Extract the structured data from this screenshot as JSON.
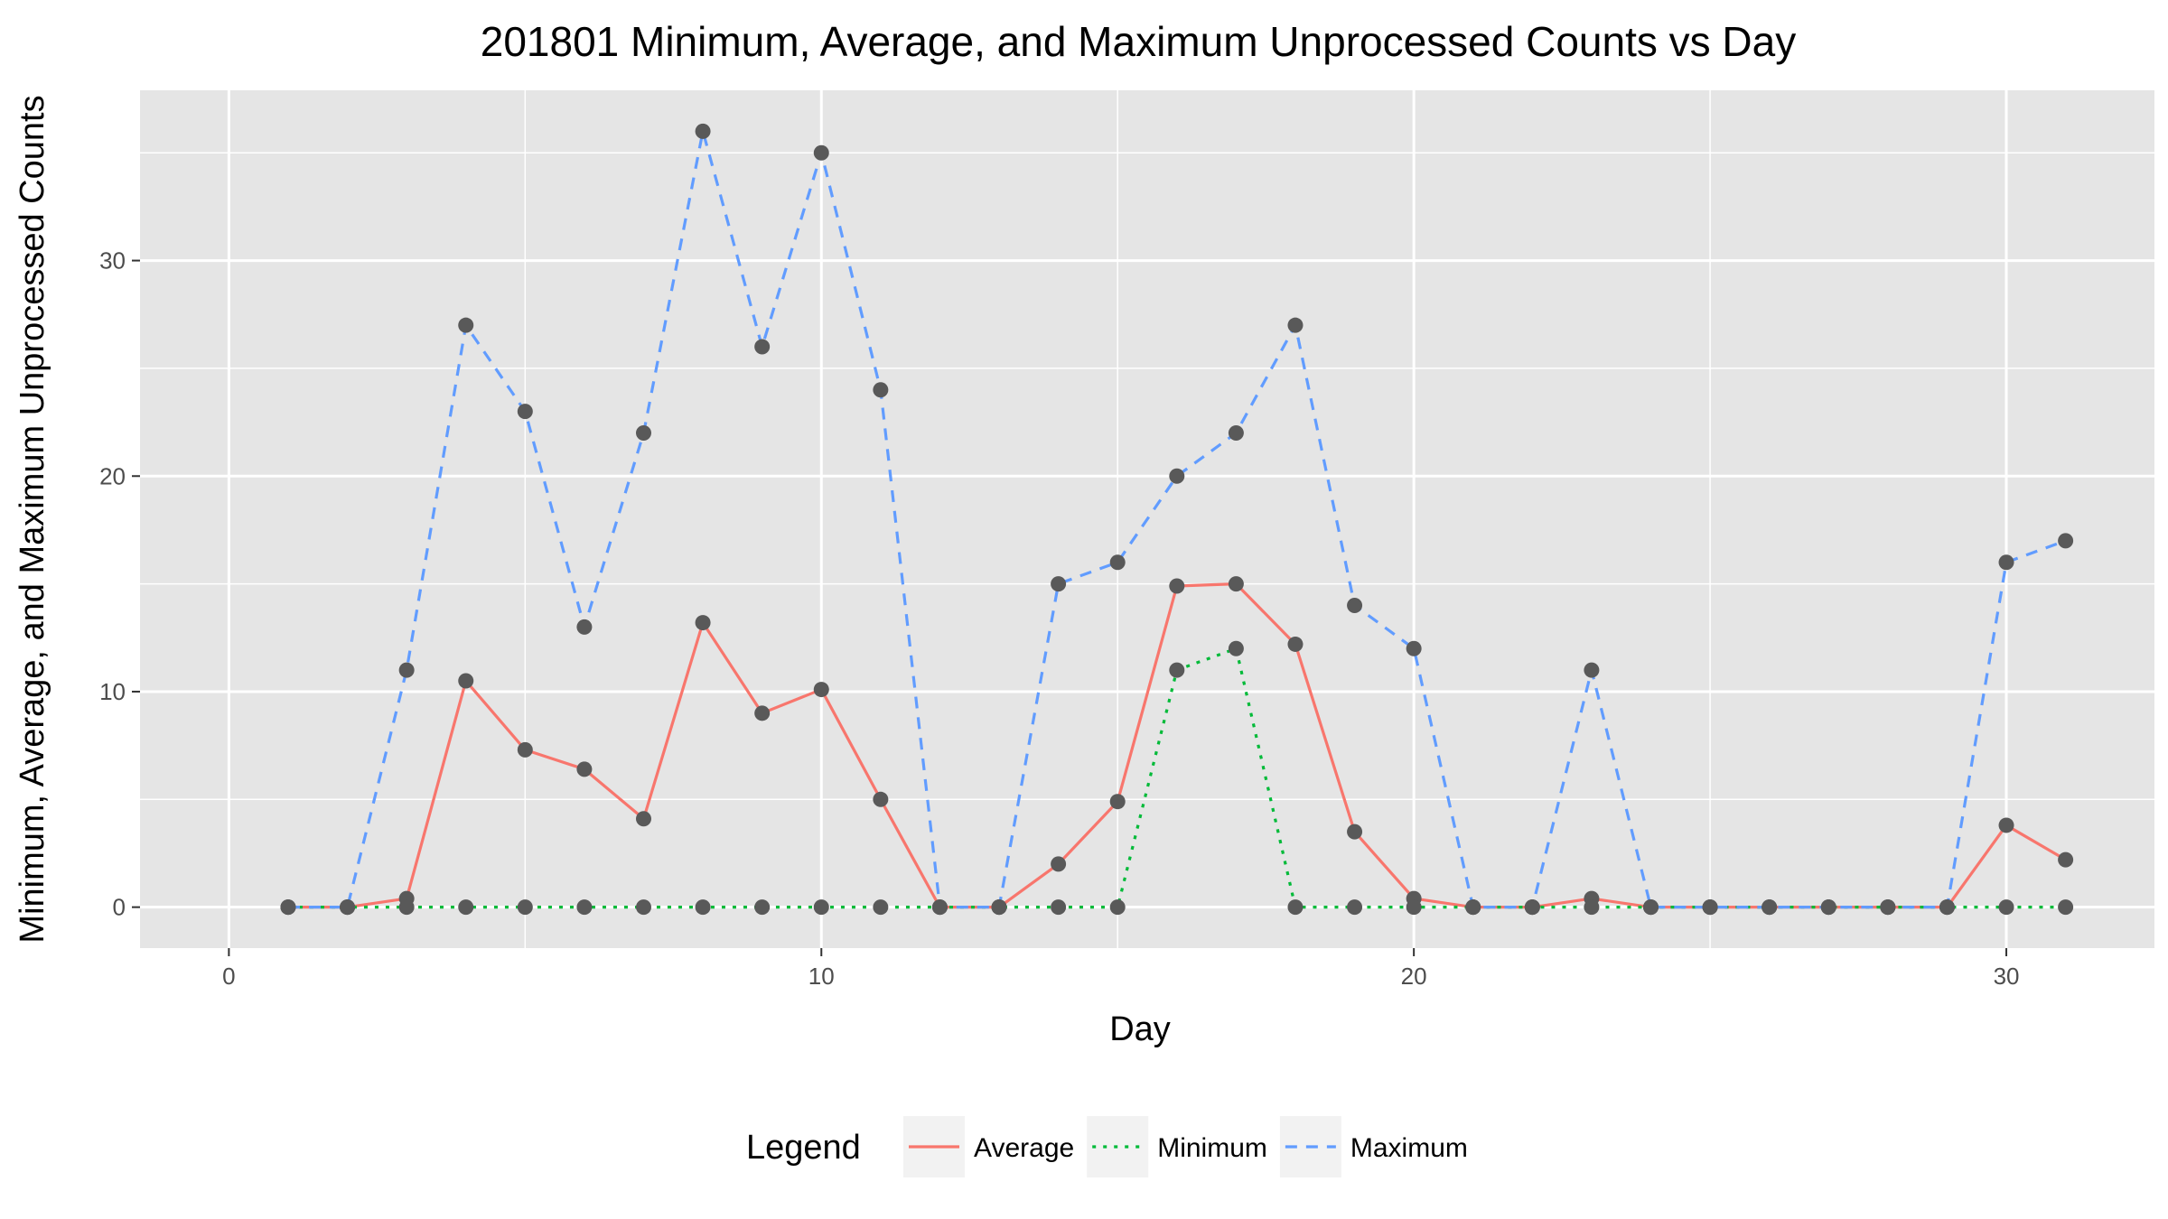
{
  "chart_data": {
    "type": "line",
    "title": "201801 Minimum, Average, and Maximum Unprocessed Counts vs Day",
    "xlabel": "Day",
    "ylabel": "Minimum, Average, and Maximum Unprocessed Counts",
    "xlim": [
      -1.5,
      32.5
    ],
    "ylim": [
      -1.9,
      37.9
    ],
    "x_ticks": [
      0,
      10,
      20,
      30
    ],
    "y_ticks": [
      0,
      10,
      20,
      30
    ],
    "grid": true,
    "legend_position": "bottom",
    "legend_title": "Legend",
    "x": [
      1,
      2,
      3,
      4,
      5,
      6,
      7,
      8,
      9,
      10,
      11,
      12,
      13,
      14,
      15,
      16,
      17,
      18,
      19,
      20,
      21,
      22,
      23,
      24,
      25,
      26,
      27,
      28,
      29,
      30,
      31
    ],
    "series": [
      {
        "name": "Average",
        "color": "#F8766D",
        "dash": "solid",
        "values": [
          0,
          0,
          0.4,
          10.5,
          7.3,
          6.4,
          4.1,
          13.2,
          9.0,
          10.1,
          5.0,
          0,
          0,
          2.0,
          4.9,
          14.9,
          15.0,
          12.2,
          3.5,
          0.4,
          0,
          0,
          0.4,
          0,
          0,
          0,
          0,
          0,
          0,
          3.8,
          2.2
        ]
      },
      {
        "name": "Minimum",
        "color": "#00BA38",
        "dash": "dotted",
        "values": [
          0,
          0,
          0,
          0,
          0,
          0,
          0,
          0,
          0,
          0,
          0,
          0,
          0,
          0,
          0,
          11,
          12,
          0,
          0,
          0,
          0,
          0,
          0,
          0,
          0,
          0,
          0,
          0,
          0,
          0,
          0
        ]
      },
      {
        "name": "Maximum",
        "color": "#619CFF",
        "dash": "dashed",
        "values": [
          0,
          0,
          11,
          27,
          23,
          13,
          22,
          36,
          26,
          35,
          24,
          0,
          0,
          15,
          16,
          20,
          22,
          27,
          14,
          12,
          0,
          0,
          11,
          0,
          0,
          0,
          0,
          0,
          0,
          16,
          17
        ]
      }
    ],
    "point_color": "#595959",
    "panel_background": "#E5E5E5",
    "grid_color": "#FFFFFF"
  }
}
